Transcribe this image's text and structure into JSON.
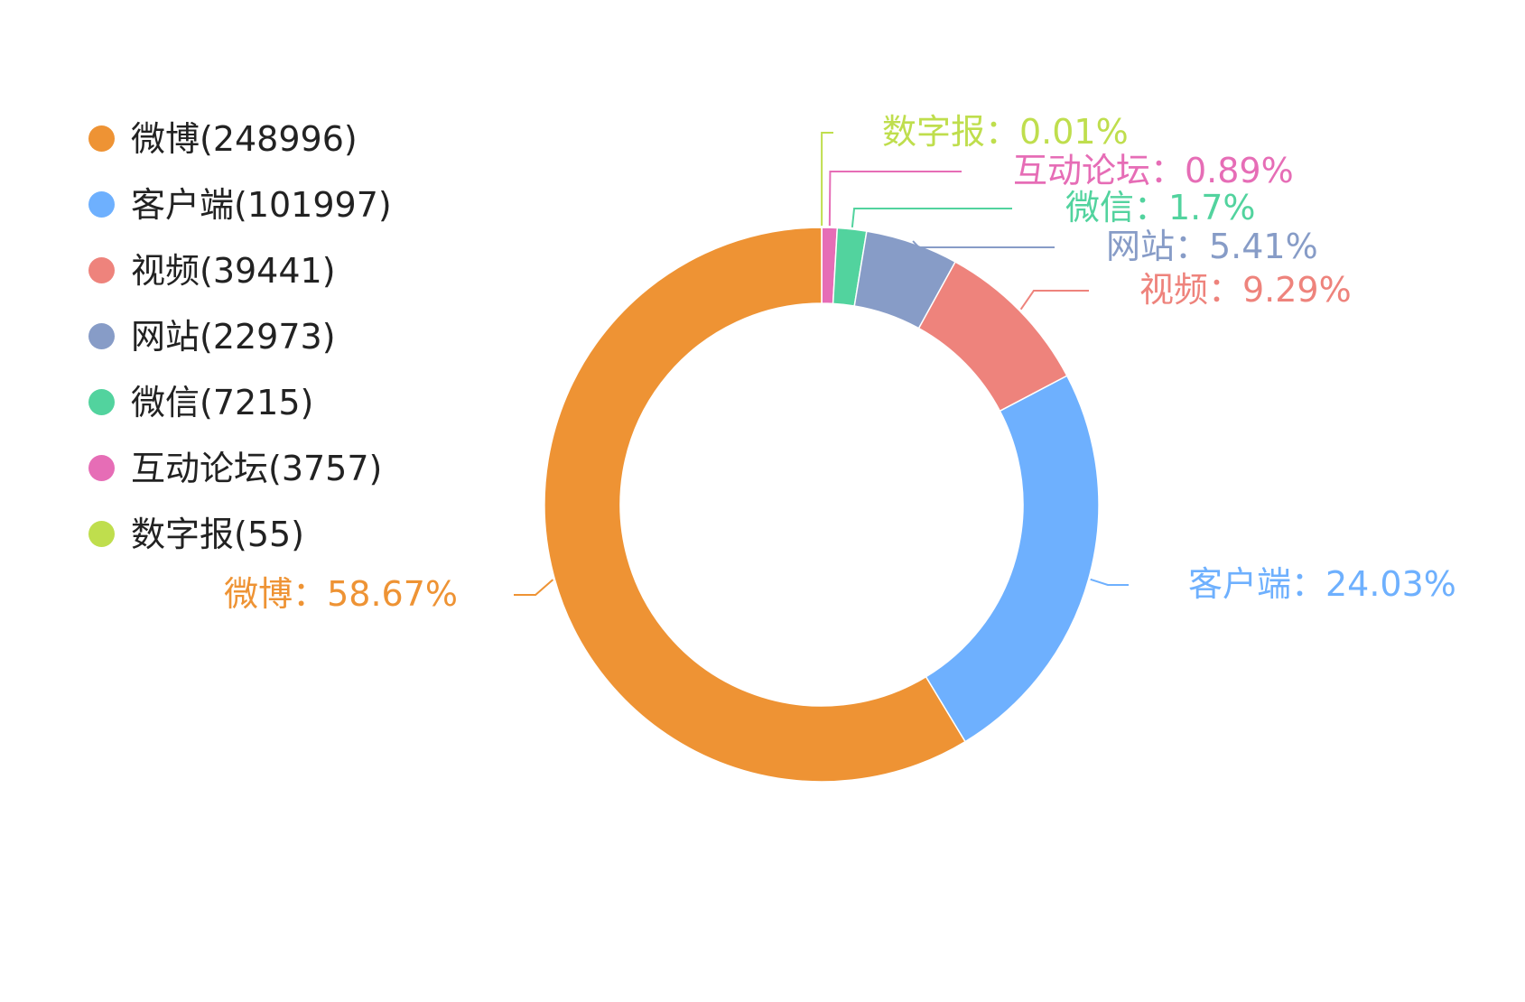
{
  "chart_data": {
    "type": "pie",
    "donut": true,
    "legend_position": "left",
    "title": "",
    "categories": [
      "微博",
      "客户端",
      "视频",
      "网站",
      "微信",
      "互动论坛",
      "数字报"
    ],
    "values": [
      248996,
      101997,
      39441,
      22973,
      7215,
      3757,
      55
    ],
    "percentages": [
      58.67,
      24.03,
      9.29,
      5.41,
      1.7,
      0.89,
      0.01
    ],
    "colors": [
      "#EE9334",
      "#6EB0FE",
      "#EE837C",
      "#879CC7",
      "#52D39E",
      "#E66DB6",
      "#BFDE4D"
    ],
    "legend_labels": [
      "微博(248996)",
      "客户端(101997)",
      "视频(39441)",
      "网站(22973)",
      "微信(7215)",
      "互动论坛(3757)",
      "数字报(55)"
    ],
    "slice_labels": [
      "微博：58.67%",
      "客户端：24.03%",
      "视频：9.29%",
      "网站：5.41%",
      "微信：1.7%",
      "互动论坛：0.89%",
      "数字报：0.01%"
    ]
  }
}
